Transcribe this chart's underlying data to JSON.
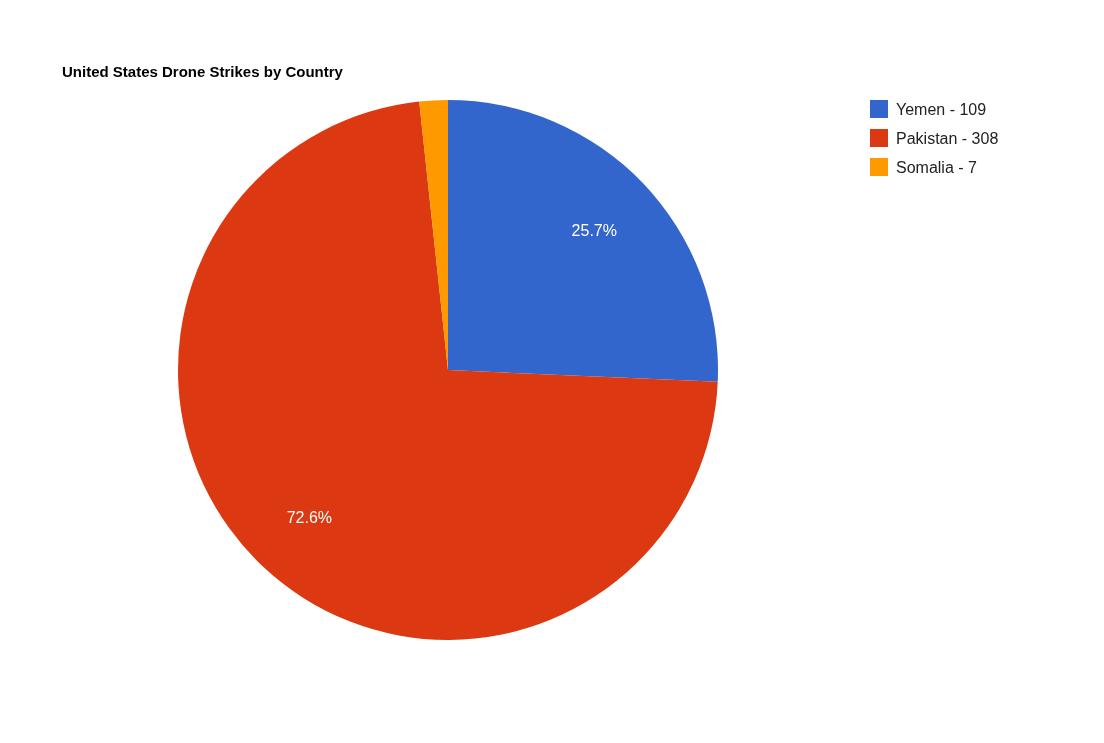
{
  "chart_data": {
    "type": "pie",
    "title": "United States Drone Strikes by Country",
    "categories": [
      "Yemen - 109",
      "Pakistan - 308",
      "Somalia - 7"
    ],
    "values": [
      25.7,
      72.6,
      1.7
    ],
    "colors": [
      "#3366cc",
      "#dc3912",
      "#ff9900"
    ],
    "value_labels": [
      "25.7%",
      "72.6%",
      null
    ],
    "legend": "top right"
  }
}
